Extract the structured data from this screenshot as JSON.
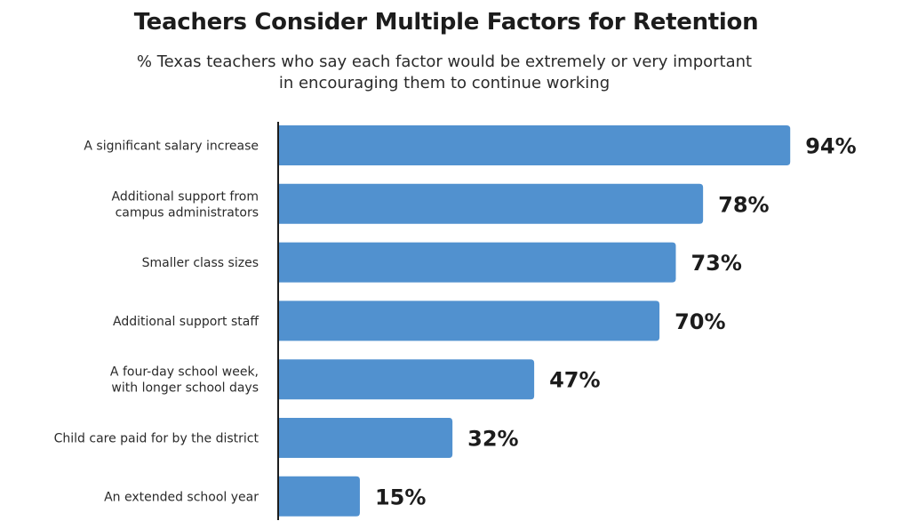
{
  "chart_data": {
    "type": "bar",
    "orientation": "horizontal",
    "title": "Teachers Consider Multiple Factors for Retention",
    "subtitle": "% Texas teachers who say each factor would be extremely or very important in encouraging them to continue working",
    "categories": [
      [
        "A significant salary increase"
      ],
      [
        "Additional support from",
        "campus administrators"
      ],
      [
        "Smaller class sizes"
      ],
      [
        "Additional support staff"
      ],
      [
        "A four-day school week,",
        "with longer school days"
      ],
      [
        "Child care paid for by the district"
      ],
      [
        "An extended school year"
      ]
    ],
    "values": [
      94,
      78,
      73,
      70,
      47,
      32,
      15
    ],
    "value_labels": [
      "94%",
      "78%",
      "73%",
      "70%",
      "47%",
      "32%",
      "15%"
    ],
    "xlim": [
      0,
      100
    ],
    "grid": false,
    "bar_color": "#5191cf",
    "axis_color": "#1c1c1c"
  }
}
